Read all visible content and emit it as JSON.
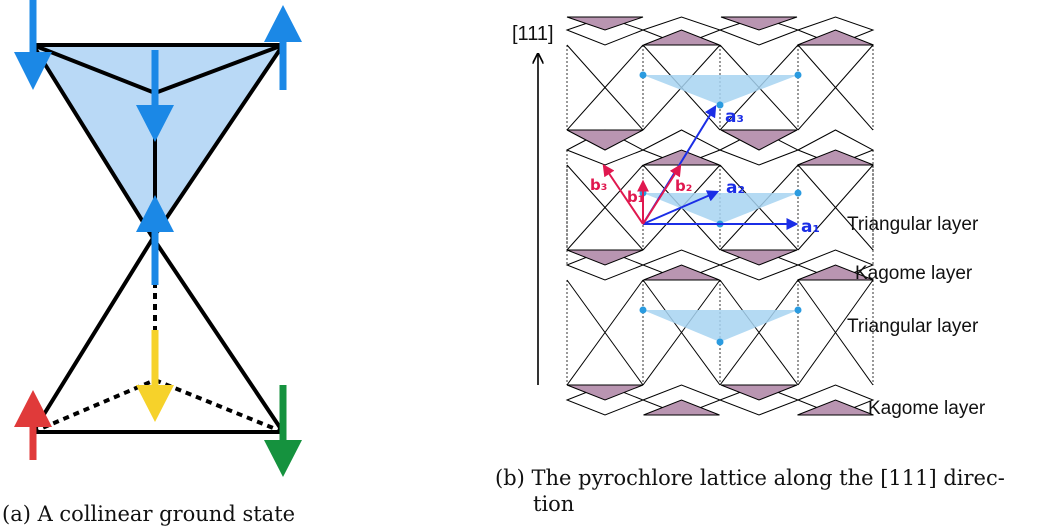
{
  "panel_a": {
    "caption": "(a) A collinear ground state"
  },
  "panel_b": {
    "direction_label": "[111]",
    "vector_labels": {
      "a1": "a₁",
      "a2": "a₂",
      "a3": "a₃",
      "b1": "b₁",
      "b2": "b₂",
      "b3": "b₃"
    },
    "layer_labels": [
      "Triangular layer",
      "Kagome layer",
      "Triangular layer",
      "Kagome layer"
    ],
    "caption_line1": "(b) The pyrochlore lattice along the [111] direc-",
    "caption_line2": "tion"
  },
  "colors": {
    "spin_blue": "#1b88e6",
    "spin_red": "#e03a3a",
    "spin_yellow": "#f6d22a",
    "spin_green": "#15923e",
    "tetra_fill": "#b9d9f6",
    "kagome_fill": "#b995b1",
    "triangular_fill": "#a7d3f1",
    "vector_blue": "#1b2ee6",
    "vector_red": "#e0184f"
  }
}
